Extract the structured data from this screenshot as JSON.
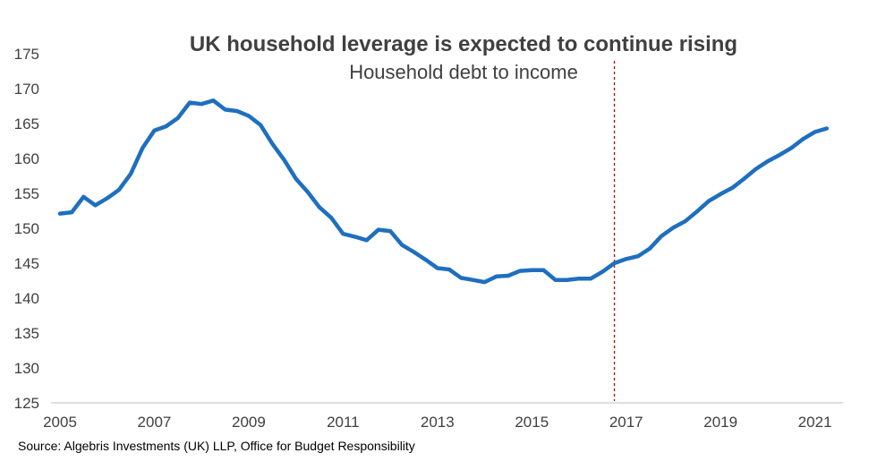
{
  "chart_data": {
    "type": "line",
    "title": "UK household leverage is expected to continue rising",
    "subtitle": "Household debt to income",
    "source": "Source: Algebris Investments (UK) LLP, Office for Budget Responsibility",
    "xlabel": "",
    "ylabel": "",
    "xlim": [
      2005,
      2021.5
    ],
    "ylim": [
      125,
      175
    ],
    "y_ticks": [
      125,
      130,
      135,
      140,
      145,
      150,
      155,
      160,
      165,
      170,
      175
    ],
    "x_ticks": [
      2005,
      2007,
      2009,
      2011,
      2013,
      2015,
      2017,
      2019,
      2021
    ],
    "x_tick_labels": [
      "2005",
      "2007",
      "2009",
      "2011",
      "2013",
      "2015",
      "2017",
      "2019",
      "2021"
    ],
    "grid": false,
    "forecast_marker_x": 2016.75,
    "colors": {
      "series": "#1f6fbf",
      "forecast_line": "#c00000",
      "axis": "#bfbfbf",
      "text": "#404040"
    },
    "series": [
      {
        "x": [
          2005.0,
          2005.25,
          2005.5,
          2005.75,
          2006.0,
          2006.25,
          2006.5,
          2006.75,
          2007.0,
          2007.25,
          2007.5,
          2007.75,
          2008.0,
          2008.25,
          2008.5,
          2008.75,
          2009.0,
          2009.25,
          2009.5,
          2009.75,
          2010.0,
          2010.25,
          2010.5,
          2010.75,
          2011.0,
          2011.25,
          2011.5,
          2011.75,
          2012.0,
          2012.25,
          2012.5,
          2012.75,
          2013.0,
          2013.25,
          2013.5,
          2013.75,
          2014.0,
          2014.25,
          2014.5,
          2014.75,
          2015.0,
          2015.25,
          2015.5,
          2015.75,
          2016.0,
          2016.25,
          2016.5,
          2016.75,
          2017.0,
          2017.25,
          2017.5,
          2017.75,
          2018.0,
          2018.25,
          2018.5,
          2018.75,
          2019.0,
          2019.25,
          2019.5,
          2019.75,
          2020.0,
          2020.25,
          2020.5,
          2020.75,
          2021.0,
          2021.25
        ],
        "values": [
          152.1,
          152.3,
          154.5,
          153.3,
          154.3,
          155.5,
          157.8,
          161.5,
          164.0,
          164.6,
          165.8,
          168.0,
          167.8,
          168.3,
          167.0,
          166.8,
          166.1,
          164.8,
          162.1,
          159.8,
          157.1,
          155.2,
          153.0,
          151.5,
          149.2,
          148.8,
          148.3,
          149.8,
          149.6,
          147.6,
          146.6,
          145.5,
          144.3,
          144.1,
          142.9,
          142.6,
          142.3,
          143.1,
          143.2,
          143.9,
          144.0,
          144.0,
          142.6,
          142.6,
          142.8,
          142.8,
          143.8,
          145.0,
          145.6,
          146.0,
          147.1,
          148.9,
          150.1,
          151.0,
          152.4,
          153.9,
          154.9,
          155.8,
          157.1,
          158.5,
          159.6,
          160.5,
          161.5,
          162.8,
          163.8,
          164.3
        ]
      }
    ]
  }
}
